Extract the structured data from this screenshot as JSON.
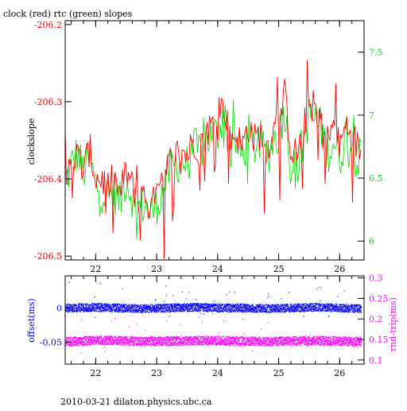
{
  "title": "clock (red) rtc (green) slopes",
  "footer": "2010-03-21  dilaton.physics.ubc.ca",
  "colors": {
    "axis": "#000000",
    "clock": "#ff0000",
    "rtc": "#00dd00",
    "offset": "#0000ff",
    "roundtrip": "#ff00ff"
  },
  "chart_data": [
    {
      "type": "line",
      "ylabel": "clockslope",
      "y2label": "",
      "xlim": [
        21.5,
        26.4
      ],
      "ylim": [
        -206.505,
        -206.195
      ],
      "y2lim": [
        5.85,
        7.75
      ],
      "x_ticks": [
        22,
        23,
        24,
        25,
        26
      ],
      "x_tick_labels": [
        "22",
        "23",
        "24",
        "25",
        "26"
      ],
      "y_ticks": [
        -206.5,
        -206.4,
        -206.3,
        -206.2
      ],
      "y_tick_labels": [
        "-206.5",
        "-206.4",
        "-206.3",
        "-206.2"
      ],
      "y2_ticks": [
        6,
        6.5,
        7,
        7.5
      ],
      "y2_tick_labels": [
        "6",
        "6.5",
        "7",
        "7.5"
      ],
      "series": [
        {
          "name": "clock (red)",
          "axis": "left",
          "x": [
            21.5,
            21.6,
            21.7,
            21.8,
            21.9,
            22.0,
            22.1,
            22.2,
            22.3,
            22.4,
            22.5,
            22.6,
            22.7,
            22.8,
            22.9,
            23.0,
            23.1,
            23.2,
            23.3,
            23.4,
            23.5,
            23.6,
            23.7,
            23.8,
            23.9,
            24.0,
            24.1,
            24.2,
            24.3,
            24.4,
            24.5,
            24.6,
            24.7,
            24.8,
            24.9,
            25.0,
            25.1,
            25.2,
            25.3,
            25.4,
            25.5,
            25.6,
            25.7,
            25.8,
            25.9,
            26.0,
            26.1,
            26.2,
            26.3
          ],
          "values": [
            -206.41,
            -206.38,
            -206.37,
            -206.39,
            -206.36,
            -206.4,
            -206.4,
            -206.41,
            -206.4,
            -206.42,
            -206.39,
            -206.41,
            -206.43,
            -206.42,
            -206.44,
            -206.42,
            -206.41,
            -206.38,
            -206.37,
            -206.36,
            -206.37,
            -206.35,
            -206.36,
            -206.34,
            -206.33,
            -206.33,
            -206.3,
            -206.35,
            -206.34,
            -206.36,
            -206.33,
            -206.35,
            -206.34,
            -206.36,
            -206.34,
            -206.33,
            -206.29,
            -206.36,
            -206.37,
            -206.34,
            -206.3,
            -206.31,
            -206.32,
            -206.35,
            -206.33,
            -206.36,
            -206.33,
            -206.34,
            -206.36
          ]
        },
        {
          "name": "rtc (green)",
          "axis": "right",
          "x": [
            21.5,
            21.6,
            21.7,
            21.8,
            21.9,
            22.0,
            22.1,
            22.2,
            22.3,
            22.4,
            22.5,
            22.6,
            22.7,
            22.8,
            22.9,
            23.0,
            23.1,
            23.2,
            23.3,
            23.4,
            23.5,
            23.6,
            23.7,
            23.8,
            23.9,
            24.0,
            24.1,
            24.2,
            24.3,
            24.4,
            24.5,
            24.6,
            24.7,
            24.8,
            24.9,
            25.0,
            25.1,
            25.2,
            25.3,
            25.4,
            25.5,
            25.6,
            25.7,
            25.8,
            25.9,
            26.0,
            26.1,
            26.2,
            26.3
          ],
          "values": [
            6.45,
            6.6,
            6.7,
            6.55,
            6.65,
            6.45,
            6.4,
            6.35,
            6.4,
            6.3,
            6.5,
            6.35,
            6.25,
            6.3,
            6.2,
            6.3,
            6.4,
            6.55,
            6.6,
            6.65,
            6.6,
            6.75,
            6.7,
            6.8,
            6.85,
            6.85,
            7.05,
            6.7,
            6.8,
            6.65,
            6.85,
            6.75,
            6.8,
            6.65,
            6.8,
            6.85,
            7.05,
            6.6,
            6.55,
            6.8,
            7.0,
            6.95,
            6.9,
            6.7,
            6.8,
            6.65,
            6.85,
            6.75,
            6.65
          ]
        }
      ]
    },
    {
      "type": "scatter",
      "ylabel": "offset(ms)",
      "y2label": "rnd-trip(ms)",
      "xlim": [
        21.5,
        26.4
      ],
      "ylim": [
        -0.082,
        0.047
      ],
      "y2lim": [
        0.09,
        0.305
      ],
      "x_ticks": [
        22,
        23,
        24,
        25,
        26
      ],
      "x_tick_labels": [
        "22",
        "23",
        "24",
        "25",
        "26"
      ],
      "y_ticks": [
        -0.05,
        0
      ],
      "y_tick_labels": [
        "-0.05",
        "0"
      ],
      "y2_ticks": [
        0.1,
        0.15,
        0.2,
        0.25,
        0.3
      ],
      "y2_tick_labels": [
        "0.1",
        "0.15",
        "0.2",
        "0.25",
        "0.3"
      ],
      "series": [
        {
          "name": "offset",
          "axis": "left",
          "x": [
            21.6,
            22.0,
            22.4,
            22.8,
            23.2,
            23.6,
            24.0,
            24.4,
            24.8,
            25.2,
            25.6,
            26.0,
            26.3
          ],
          "values": [
            0.0,
            0.001,
            0.0,
            -0.001,
            0.0,
            0.001,
            0.0,
            0.0,
            -0.001,
            0.0,
            0.001,
            0.0,
            -0.001
          ],
          "spread": 0.012
        },
        {
          "name": "round trip",
          "axis": "right",
          "x": [
            21.6,
            22.0,
            22.4,
            22.8,
            23.2,
            23.6,
            24.0,
            24.4,
            24.8,
            25.2,
            25.6,
            26.0,
            26.3
          ],
          "values": [
            0.145,
            0.148,
            0.147,
            0.145,
            0.146,
            0.147,
            0.147,
            0.146,
            0.145,
            0.146,
            0.147,
            0.146,
            0.145
          ],
          "spread": 0.022
        }
      ]
    }
  ]
}
